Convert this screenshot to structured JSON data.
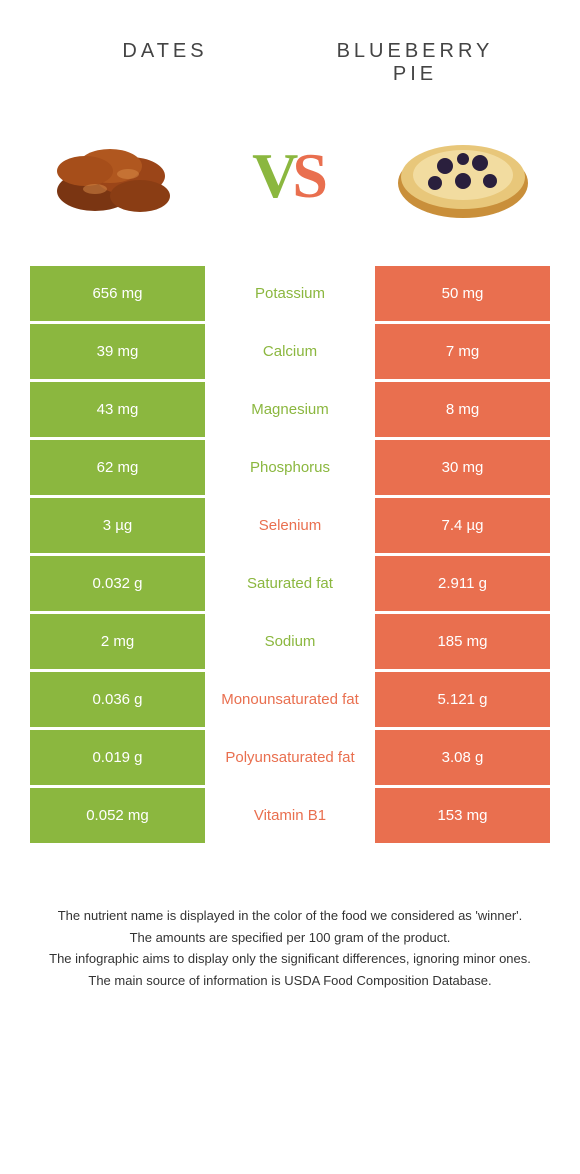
{
  "colors": {
    "left_block": "#8bb73f",
    "right_block": "#e96f4f",
    "left_text": "#8bb73f",
    "right_text": "#e96f4f",
    "vs_v": "#8bb73f",
    "vs_s": "#e96f4f"
  },
  "header": {
    "left": "DATES",
    "right": "BLUEBERRY PIE"
  },
  "vs": {
    "v": "V",
    "s": "S"
  },
  "rows": [
    {
      "left": "656 mg",
      "mid": "Potassium",
      "right": "50 mg",
      "winner": "left"
    },
    {
      "left": "39 mg",
      "mid": "Calcium",
      "right": "7 mg",
      "winner": "left"
    },
    {
      "left": "43 mg",
      "mid": "Magnesium",
      "right": "8 mg",
      "winner": "left"
    },
    {
      "left": "62 mg",
      "mid": "Phosphorus",
      "right": "30 mg",
      "winner": "left"
    },
    {
      "left": "3 µg",
      "mid": "Selenium",
      "right": "7.4 µg",
      "winner": "right"
    },
    {
      "left": "0.032 g",
      "mid": "Saturated fat",
      "right": "2.911 g",
      "winner": "left"
    },
    {
      "left": "2 mg",
      "mid": "Sodium",
      "right": "185 mg",
      "winner": "left"
    },
    {
      "left": "0.036 g",
      "mid": "Monounsaturated fat",
      "right": "5.121 g",
      "winner": "right"
    },
    {
      "left": "0.019 g",
      "mid": "Polyunsaturated fat",
      "right": "3.08 g",
      "winner": "right"
    },
    {
      "left": "0.052 mg",
      "mid": "Vitamin B1",
      "right": "153 mg",
      "winner": "right"
    }
  ],
  "footer": {
    "l1": "The nutrient name is displayed in the color of the food we considered as 'winner'.",
    "l2": "The amounts are specified per 100 gram of the product.",
    "l3": "The infographic aims to display only the significant differences, ignoring minor ones.",
    "l4": "The main source of information is USDA Food Composition Database."
  }
}
